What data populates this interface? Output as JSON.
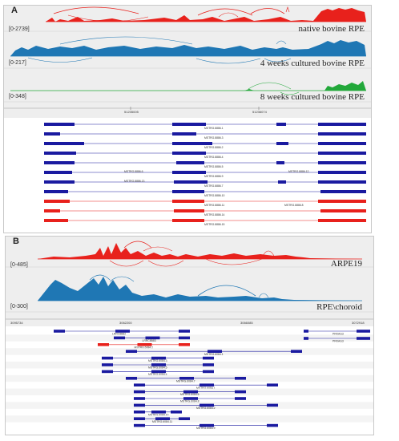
{
  "panel_a": {
    "letter": "A",
    "tracks": [
      {
        "range": "[0-2739]",
        "label": "native bovine RPE",
        "color": "#e8211c"
      },
      {
        "range": "[0-217]",
        "label": "4 weeks cultured bovine RPE",
        "color": "#1f77b4"
      },
      {
        "range": "[0-348]",
        "label": "8 weeks cultured bovine RPE",
        "color": "#22a83a"
      }
    ],
    "coords": [
      "51235005",
      "51236074"
    ],
    "transcripts": [
      {
        "name": "MSTRG.8886.1",
        "color": "#1a1aa0"
      },
      {
        "name": "MSTRG.8886.3",
        "color": "#1a1aa0"
      },
      {
        "name": "MSTRG.8886.2",
        "color": "#1a1aa0"
      },
      {
        "name": "MSTRG.8886.4",
        "color": "#1a1aa0"
      },
      {
        "name": "MSTRG.8886.5",
        "color": "#1a1aa0"
      },
      {
        "name": "MSTRG.8886.9",
        "color": "#1a1aa0"
      },
      {
        "name": "MSTRG.8886.7",
        "color": "#1a1aa0"
      },
      {
        "name": "MSTRG.8886.10",
        "color": "#1a1aa0"
      },
      {
        "name": "MSTRG.8886.11",
        "color": "#e8211c"
      },
      {
        "name": "MSTRG.8886.14",
        "color": "#e8211c"
      },
      {
        "name": "MSTRG.8886.15",
        "color": "#e8211c"
      }
    ],
    "side_names": [
      "MSTRG.8886.12",
      "MSTRG.8886.6",
      "MSTRG.8886.13",
      "MSTRG.8886.8"
    ]
  },
  "panel_b": {
    "letter": "B",
    "tracks": [
      {
        "range": "[0-485]",
        "label": "ARPE19",
        "color": "#e8211c"
      },
      {
        "range": "[0-300]",
        "label": "RPE\\choroid",
        "color": "#1f77b4"
      }
    ],
    "coords": [
      "3095734",
      "3062200",
      "3066085",
      "3072918"
    ],
    "transcripts": [
      {
        "name": "LRRC8B82",
        "color": "#1a1aa0"
      },
      {
        "name": "LRRC8B83",
        "color": "#1a1aa0"
      },
      {
        "name": "MSTRG.6084.2",
        "color": "#e8211c"
      },
      {
        "name": "MSTRG.6084.1",
        "color": "#1a1aa0"
      },
      {
        "name": "MSTRG.6084.3",
        "color": "#1a1aa0"
      },
      {
        "name": "MSTRG.6084.5",
        "color": "#1a1aa0"
      },
      {
        "name": "MSTRG.6084.4",
        "color": "#1a1aa0"
      },
      {
        "name": "MSTRG.6084.7",
        "color": "#1a1aa0"
      },
      {
        "name": "MSTRG.6084.1",
        "color": "#1a1aa0"
      },
      {
        "name": "MSTRG.6084.6",
        "color": "#1a1aa0"
      },
      {
        "name": "MSTRG.6084.8",
        "color": "#1a1aa0"
      },
      {
        "name": "MSTRG.6084.2",
        "color": "#1a1aa0"
      },
      {
        "name": "MSTRG.6084.10",
        "color": "#1a1aa0"
      },
      {
        "name": "MSTRG.6084.11",
        "color": "#1a1aa0"
      },
      {
        "name": "MSTRG.6084.9",
        "color": "#1a1aa0"
      }
    ],
    "side_names": [
      "PRKAG3",
      "PRKAG3"
    ]
  }
}
